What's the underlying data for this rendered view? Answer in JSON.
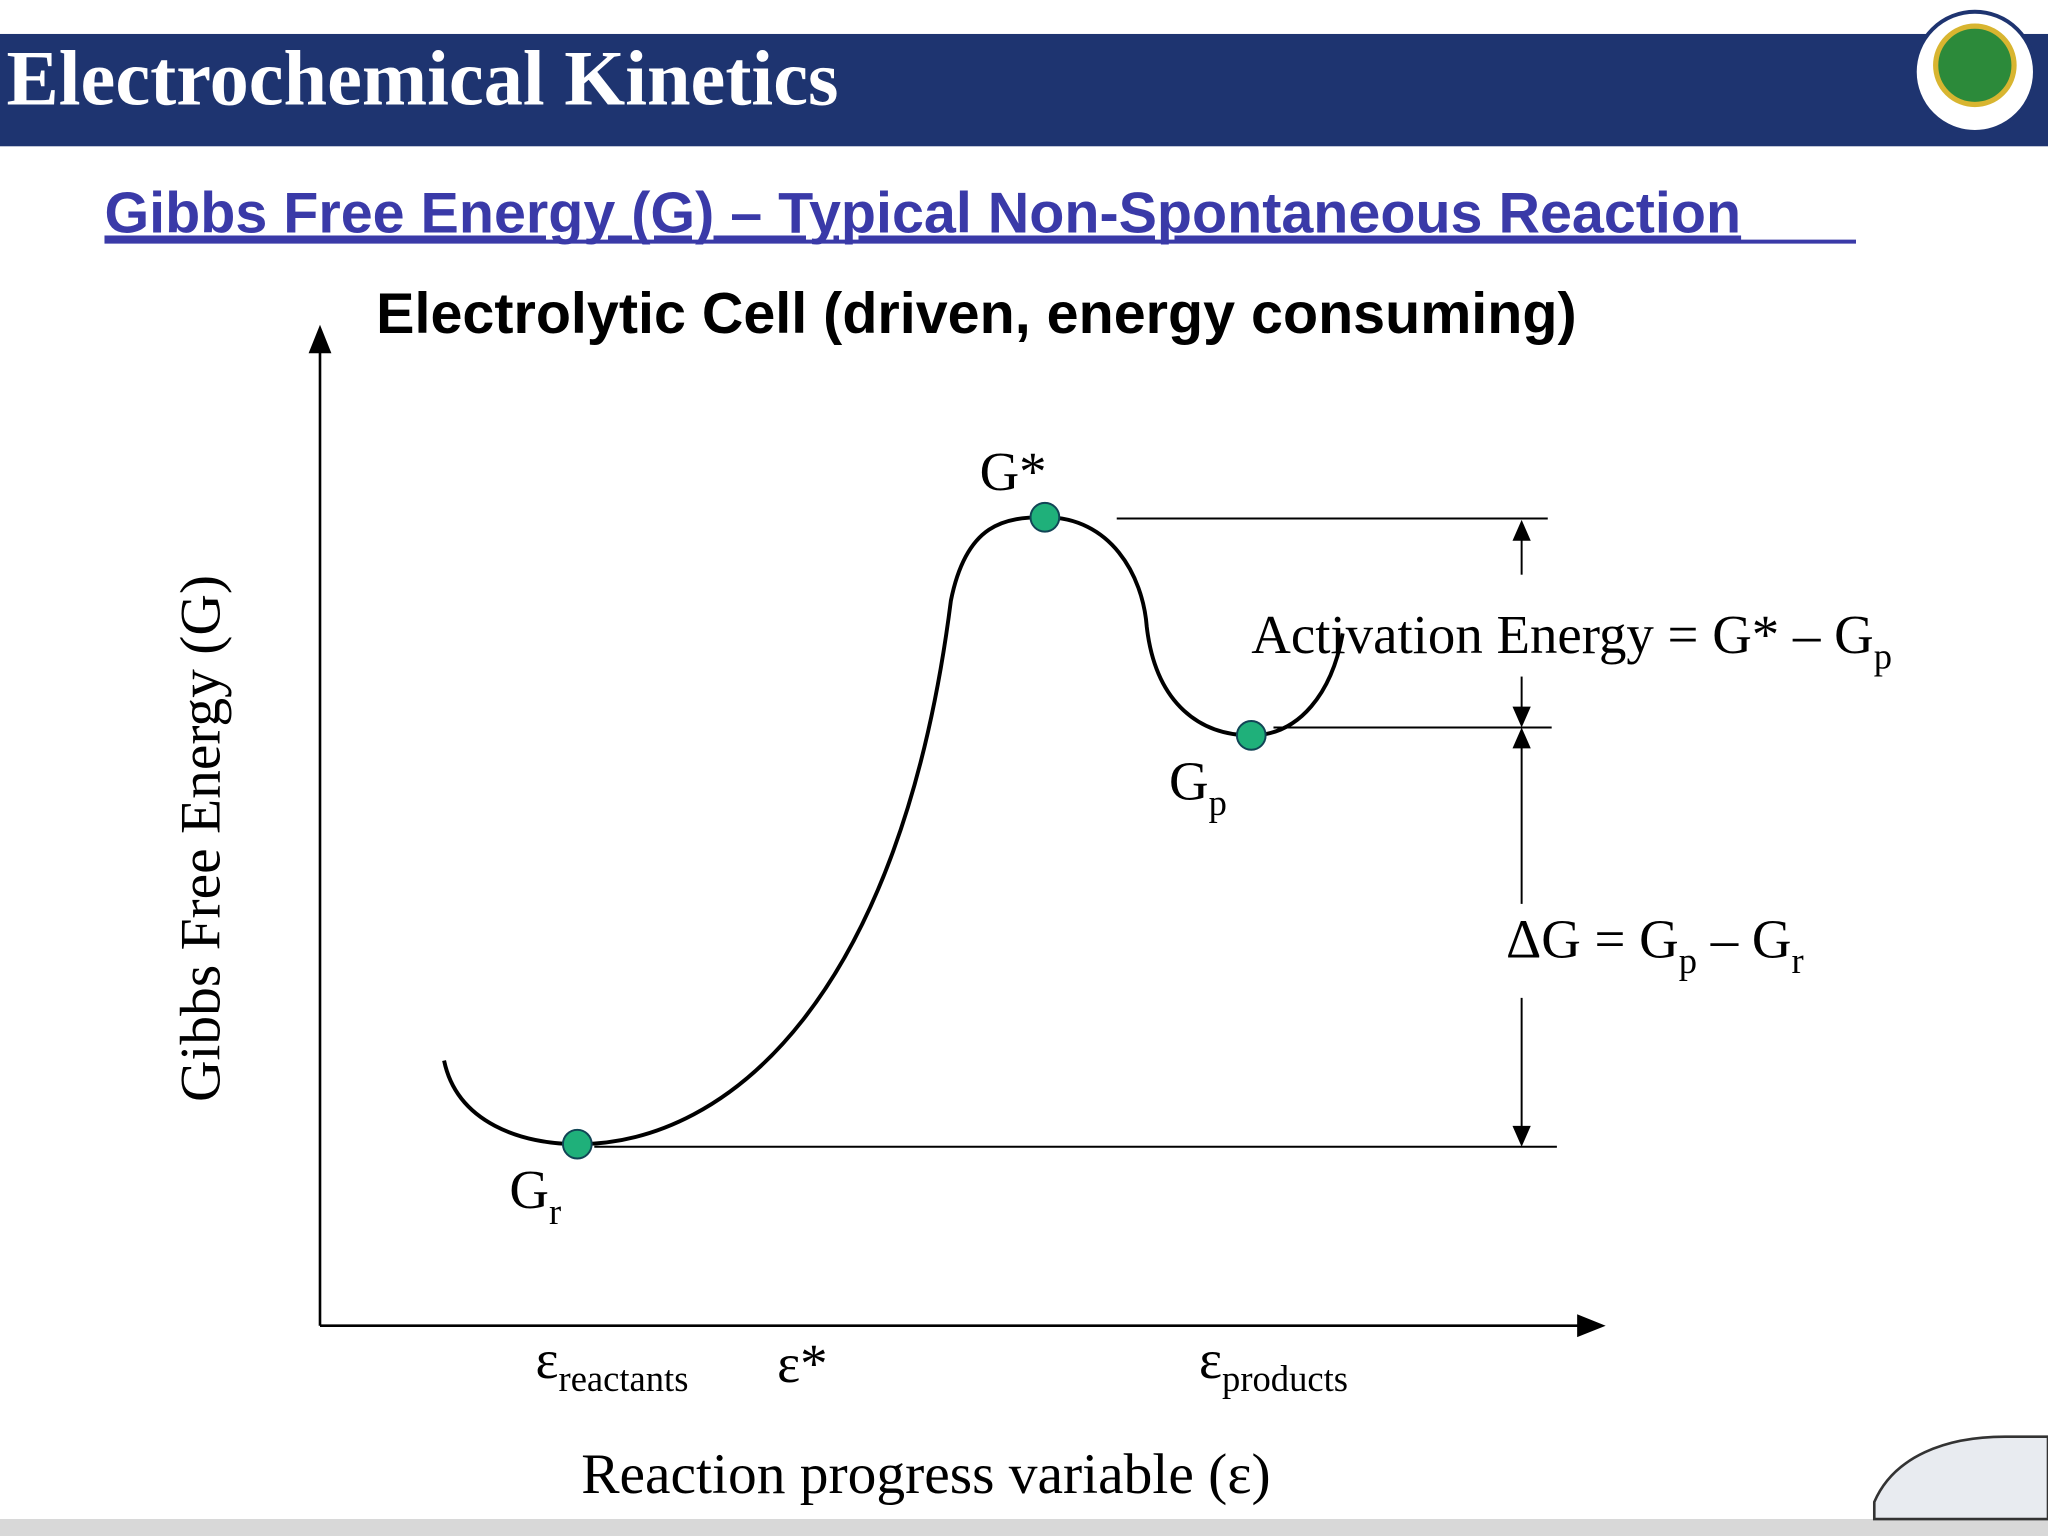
{
  "header": {
    "title": "Electrochemical Kinetics"
  },
  "subtitle": "Gibbs Free Energy (G) – Typical Non-Spontaneous Reaction",
  "diagram": {
    "title": "Electrolytic Cell (driven, energy consuming)",
    "y_axis_label": "Gibbs Free Energy (G)",
    "x_axis_label": "Reaction progress variable (ε)",
    "points": {
      "transition": {
        "text": "G*"
      },
      "products": {
        "text": "G",
        "sub": "p"
      },
      "reactants": {
        "text": "G",
        "sub": "r"
      }
    },
    "activation_energy": {
      "text": "Activation Energy = G* – G",
      "sub": "p"
    },
    "delta_g": {
      "text1": "ΔG = G",
      "sub1": "p",
      "text2": " – G",
      "sub2": "r"
    },
    "x_labels": {
      "reactants": {
        "text": "ε",
        "sub": "reactants"
      },
      "transition": {
        "text": "ε*"
      },
      "products": {
        "text": "ε",
        "sub": "products"
      }
    }
  }
}
